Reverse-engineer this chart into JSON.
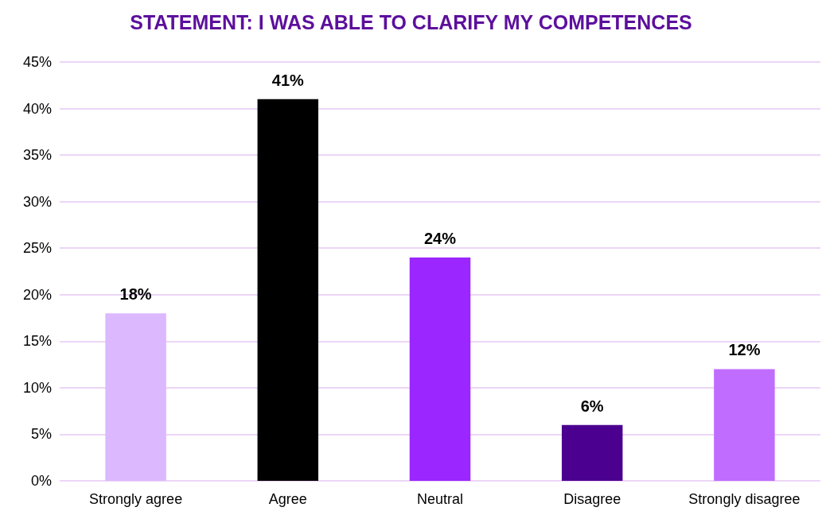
{
  "chart_data": {
    "type": "bar",
    "title": "STATEMENT: I WAS ABLE TO CLARIFY MY COMPETENCES",
    "categories": [
      "Strongly agree",
      "Agree",
      "Neutral",
      "Disagree",
      "Strongly disagree"
    ],
    "values": [
      18,
      41,
      24,
      6,
      12
    ],
    "value_labels": [
      "18%",
      "41%",
      "24%",
      "6%",
      "12%"
    ],
    "colors": [
      "#dcb8ff",
      "#000000",
      "#9b26ff",
      "#4b0090",
      "#c06cff"
    ],
    "ylim": [
      0,
      45
    ],
    "yticks": [
      {
        "value": 0,
        "label": "0%"
      },
      {
        "value": 5,
        "label": "5%"
      },
      {
        "value": 10,
        "label": "10%"
      },
      {
        "value": 15,
        "label": "15%"
      },
      {
        "value": 20,
        "label": "20%"
      },
      {
        "value": 25,
        "label": "25%"
      },
      {
        "value": 30,
        "label": "30%"
      },
      {
        "value": 35,
        "label": "35%"
      },
      {
        "value": 40,
        "label": "40%"
      },
      {
        "value": 45,
        "label": "45%"
      }
    ],
    "grid": "y"
  }
}
